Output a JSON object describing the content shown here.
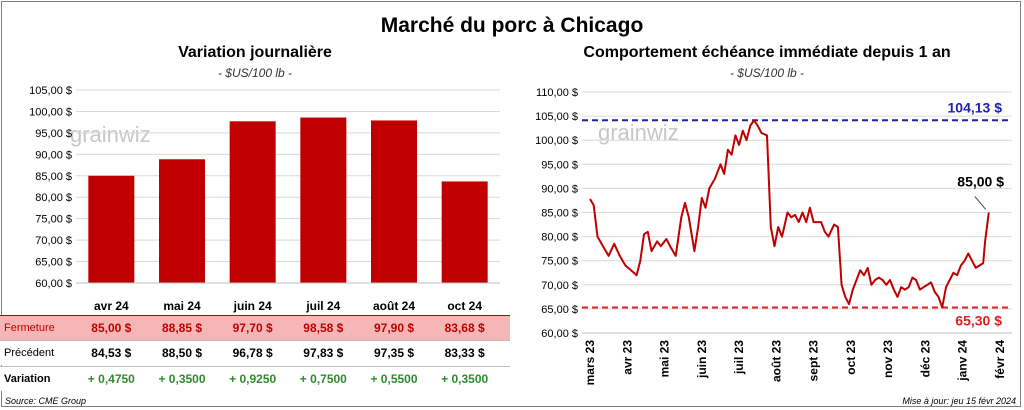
{
  "title": "Marché du porc à Chicago",
  "watermark": "grainwiz",
  "left_panel": {
    "title": "Variation  journalière",
    "subtitle": "- $US/100 lb -",
    "table": {
      "rows": [
        {
          "label": "Fermeture",
          "values": [
            "85,00  $",
            "88,85  $",
            "97,70  $",
            "98,58  $",
            "97,90  $",
            "83,68  $"
          ],
          "bg": "#f7b6b6",
          "color": "#c00000"
        },
        {
          "label": "Précédent",
          "values": [
            "84,53  $",
            "88,50  $",
            "96,78  $",
            "97,83  $",
            "97,35  $",
            "83,33  $"
          ],
          "bg": "#ffffff",
          "color": "#000000"
        },
        {
          "label": "Variation",
          "values": [
            "+ 0,4750",
            "+ 0,3500",
            "+ 0,9250",
            "+ 0,7500",
            "+ 0,5500",
            "+ 0,3500"
          ],
          "bg": "#ffffff",
          "color": "#2e8b2e"
        }
      ]
    }
  },
  "right_panel": {
    "title": "Comportement  échéance immédiate depuis 1 an",
    "subtitle": "- $US/100 lb -",
    "max_label": "104,13 $",
    "min_label": "65,30 $",
    "last_label": "85,00 $"
  },
  "footer": {
    "source": "Source: CME Group",
    "updated": "Mise à jour: jeu 15 févr 2024"
  },
  "chart_data": [
    {
      "type": "bar",
      "title": "Variation  journalière",
      "categories": [
        "avr 24",
        "mai 24",
        "juin 24",
        "juil 24",
        "août 24",
        "oct 24"
      ],
      "values": [
        85.0,
        88.85,
        97.7,
        98.58,
        97.9,
        83.68
      ],
      "ylim": [
        60,
        105
      ],
      "yticks": [
        "60,00 $",
        "65,00 $",
        "70,00 $",
        "75,00 $",
        "80,00 $",
        "85,00 $",
        "90,00 $",
        "95,00 $",
        "100,00 $",
        "105,00 $"
      ],
      "bar_color": "#c00000",
      "grid": true
    },
    {
      "type": "line",
      "title": "Comportement  échéance immédiate depuis 1 an",
      "x_labels": [
        "mars 23",
        "avr 23",
        "mai 23",
        "juin 23",
        "juil 23",
        "août 23",
        "sept 23",
        "oct 23",
        "nov 23",
        "déc 23",
        "janv 24",
        "févr 24"
      ],
      "ylim": [
        60,
        110
      ],
      "yticks": [
        "60,00 $",
        "65,00 $",
        "70,00 $",
        "75,00 $",
        "80,00 $",
        "85,00 $",
        "90,00 $",
        "95,00 $",
        "100,00 $",
        "105,00 $",
        "110,00 $"
      ],
      "series": [
        {
          "color": "#c00000",
          "points": [
            [
              0,
              87.8
            ],
            [
              0.1,
              86.5
            ],
            [
              0.2,
              80
            ],
            [
              0.35,
              78
            ],
            [
              0.5,
              76
            ],
            [
              0.65,
              78.5
            ],
            [
              0.8,
              76
            ],
            [
              0.95,
              74
            ],
            [
              1.1,
              73
            ],
            [
              1.25,
              72
            ],
            [
              1.35,
              75
            ],
            [
              1.45,
              80.5
            ],
            [
              1.55,
              81
            ],
            [
              1.65,
              77
            ],
            [
              1.8,
              79
            ],
            [
              1.9,
              78
            ],
            [
              2.05,
              79.5
            ],
            [
              2.15,
              78
            ],
            [
              2.3,
              76
            ],
            [
              2.45,
              84
            ],
            [
              2.55,
              87
            ],
            [
              2.65,
              84
            ],
            [
              2.8,
              77
            ],
            [
              2.9,
              82
            ],
            [
              3.0,
              88
            ],
            [
              3.1,
              86
            ],
            [
              3.2,
              90
            ],
            [
              3.35,
              92
            ],
            [
              3.5,
              95
            ],
            [
              3.6,
              93
            ],
            [
              3.7,
              98
            ],
            [
              3.8,
              97
            ],
            [
              3.9,
              101
            ],
            [
              4.0,
              99
            ],
            [
              4.1,
              102
            ],
            [
              4.2,
              100
            ],
            [
              4.3,
              103
            ],
            [
              4.4,
              104.13
            ],
            [
              4.5,
              103
            ],
            [
              4.6,
              101.5
            ],
            [
              4.75,
              101
            ],
            [
              4.85,
              82
            ],
            [
              4.95,
              78
            ],
            [
              5.05,
              82
            ],
            [
              5.15,
              80
            ],
            [
              5.3,
              85
            ],
            [
              5.4,
              84
            ],
            [
              5.5,
              84.5
            ],
            [
              5.6,
              83
            ],
            [
              5.7,
              85
            ],
            [
              5.8,
              83
            ],
            [
              5.9,
              86
            ],
            [
              6.0,
              83
            ],
            [
              6.1,
              83
            ],
            [
              6.2,
              83
            ],
            [
              6.3,
              81
            ],
            [
              6.4,
              80
            ],
            [
              6.55,
              82.5
            ],
            [
              6.65,
              82
            ],
            [
              6.75,
              70
            ],
            [
              6.85,
              67.5
            ],
            [
              6.95,
              66
            ],
            [
              7.05,
              69
            ],
            [
              7.15,
              71
            ],
            [
              7.25,
              73
            ],
            [
              7.35,
              72
            ],
            [
              7.45,
              73.5
            ],
            [
              7.55,
              70
            ],
            [
              7.65,
              71
            ],
            [
              7.75,
              71.5
            ],
            [
              7.85,
              71
            ],
            [
              7.95,
              70
            ],
            [
              8.05,
              71
            ],
            [
              8.15,
              69
            ],
            [
              8.25,
              67.5
            ],
            [
              8.35,
              69.5
            ],
            [
              8.45,
              69
            ],
            [
              8.55,
              69.5
            ],
            [
              8.65,
              71.5
            ],
            [
              8.75,
              71
            ],
            [
              8.85,
              69
            ],
            [
              8.95,
              69.5
            ],
            [
              9.05,
              70
            ],
            [
              9.15,
              70.5
            ],
            [
              9.25,
              68.5
            ],
            [
              9.35,
              67.5
            ],
            [
              9.45,
              65.3
            ],
            [
              9.55,
              69.5
            ],
            [
              9.65,
              71
            ],
            [
              9.75,
              72.5
            ],
            [
              9.85,
              72
            ],
            [
              9.95,
              74
            ],
            [
              10.05,
              75
            ],
            [
              10.15,
              76.5
            ],
            [
              10.25,
              75
            ],
            [
              10.35,
              73.5
            ],
            [
              10.45,
              74
            ],
            [
              10.55,
              74.5
            ],
            [
              10.6,
              79
            ],
            [
              10.7,
              85.0
            ]
          ]
        }
      ],
      "hlines": [
        {
          "value": 104.13,
          "color": "#1f1fb0"
        },
        {
          "value": 65.3,
          "color": "#e02020"
        }
      ],
      "grid": true
    }
  ]
}
